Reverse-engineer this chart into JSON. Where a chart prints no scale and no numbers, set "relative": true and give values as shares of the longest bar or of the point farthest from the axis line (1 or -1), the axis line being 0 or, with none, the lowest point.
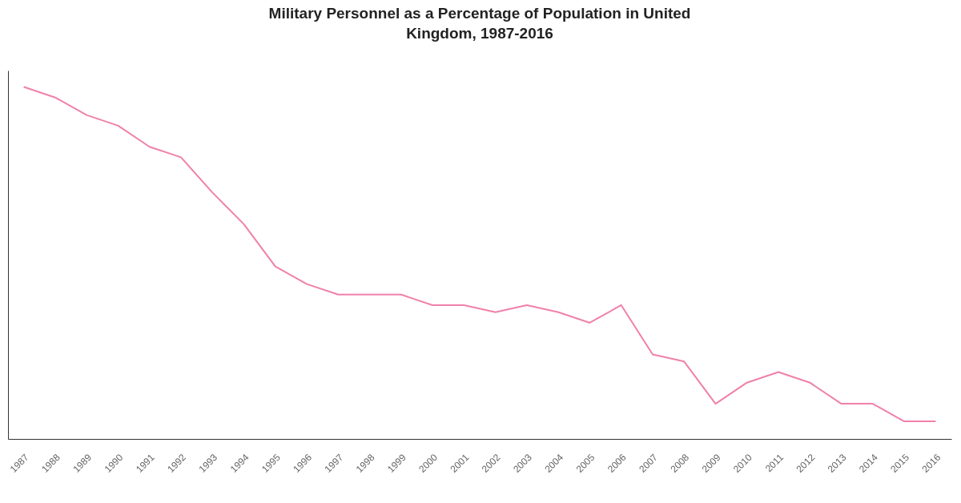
{
  "chart_data": {
    "type": "line",
    "title": "Military Personnel as a Percentage of Population in United Kingdom, 1987-2016",
    "categories": [
      "1987",
      "1988",
      "1989",
      "1990",
      "1991",
      "1992",
      "1993",
      "1994",
      "1995",
      "1996",
      "1997",
      "1998",
      "1999",
      "2000",
      "2001",
      "2002",
      "2003",
      "2004",
      "2005",
      "2006",
      "2007",
      "2008",
      "2009",
      "2010",
      "2011",
      "2012",
      "2013",
      "2014",
      "2015",
      "2016"
    ],
    "series": [
      {
        "color": "#f080aa",
        "values": [
          1.0,
          0.97,
          0.92,
          0.89,
          0.83,
          0.8,
          0.7,
          0.61,
          0.49,
          0.44,
          0.41,
          0.41,
          0.41,
          0.38,
          0.38,
          0.36,
          0.38,
          0.36,
          0.33,
          0.38,
          0.24,
          0.22,
          0.1,
          0.16,
          0.19,
          0.16,
          0.1,
          0.1,
          0.05,
          0.05
        ]
      }
    ],
    "relative": true,
    "line_style": "solid"
  }
}
